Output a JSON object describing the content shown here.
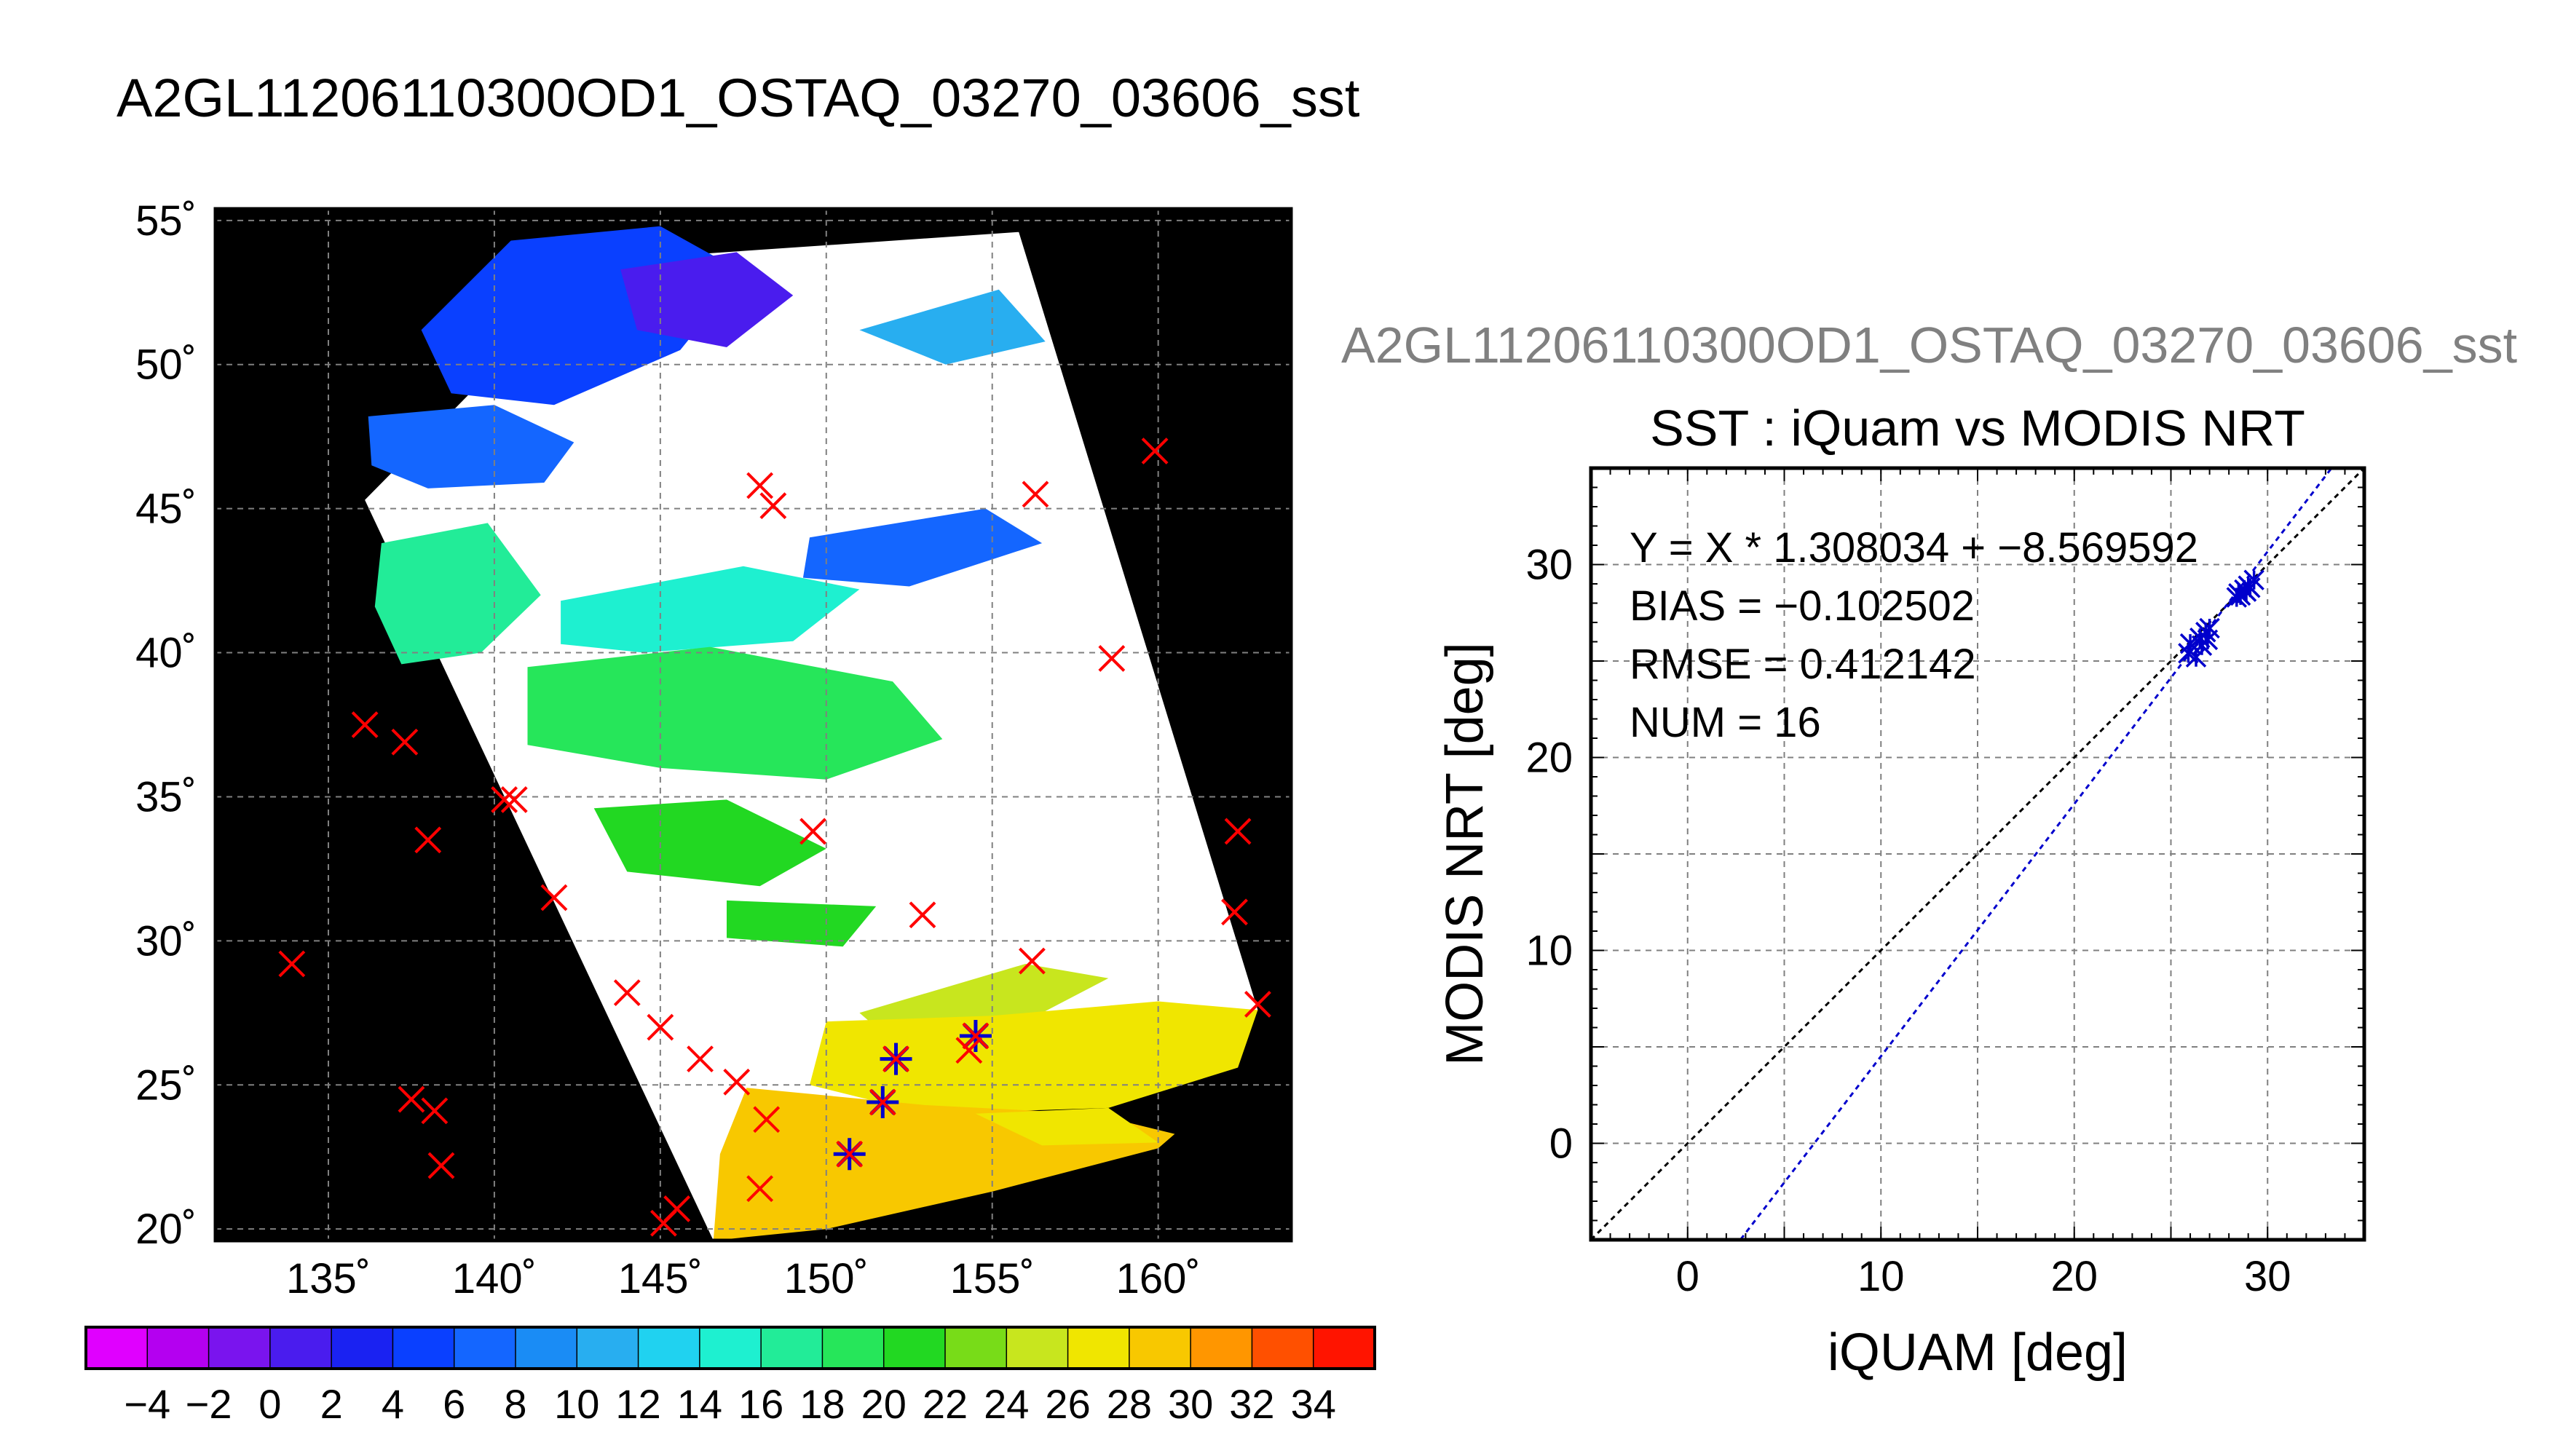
{
  "title": "A2GL11206110300OD1_OSTAQ_03270_03606_sst",
  "right_header": "A2GL11206110300OD1_OSTAQ_03270_03606_sst",
  "colors": {
    "land": "#000000",
    "cloud": "#ffffff",
    "match_marker": "#ff0000",
    "valid_marker": "#0000cc",
    "fit_line": "#0000cc",
    "one_to_one": "#000000"
  },
  "chart_data": [
    {
      "type": "heatmap",
      "name": "sst-map",
      "x_ticks": [
        "135˚",
        "140˚",
        "145˚",
        "150˚",
        "155˚",
        "160˚"
      ],
      "y_ticks": [
        "55˚",
        "50˚",
        "45˚",
        "40˚",
        "35˚",
        "30˚",
        "25˚",
        "20˚"
      ],
      "xlim": [
        131.6,
        164.0
      ],
      "ylim": [
        19.6,
        55.4
      ],
      "grid": true,
      "swath_corners": [
        [
          143.2,
          53.6
        ],
        [
          155.8,
          54.6
        ],
        [
          163.0,
          27.6
        ],
        [
          146.6,
          19.6
        ],
        [
          136.1,
          45.3
        ]
      ],
      "colorbar": {
        "labels": [
          "−4",
          "−2",
          "0",
          "2",
          "4",
          "6",
          "8",
          "10",
          "12",
          "14",
          "16",
          "18",
          "20",
          "22",
          "24",
          "26",
          "28",
          "30",
          "32",
          "34"
        ],
        "range": [
          -5,
          35
        ],
        "colors": [
          "#e000ff",
          "#b400f0",
          "#7a14ee",
          "#4a1cee",
          "#1a22f2",
          "#0a40ff",
          "#1466ff",
          "#1a8cf5",
          "#28aef0",
          "#20d2f0",
          "#1ef0d0",
          "#22ec98",
          "#26e65a",
          "#22d822",
          "#78dc18",
          "#c8e61e",
          "#f0e600",
          "#f8c800",
          "#ff9600",
          "#ff5000",
          "#ff1400"
        ]
      },
      "matchups": [
        {
          "lon": 133.9,
          "lat": 29.2
        },
        {
          "lon": 136.1,
          "lat": 37.5
        },
        {
          "lon": 137.3,
          "lat": 36.9
        },
        {
          "lon": 138.0,
          "lat": 33.5
        },
        {
          "lon": 137.5,
          "lat": 24.5
        },
        {
          "lon": 138.2,
          "lat": 24.1
        },
        {
          "lon": 138.4,
          "lat": 22.2
        },
        {
          "lon": 140.3,
          "lat": 34.9
        },
        {
          "lon": 140.6,
          "lat": 34.9
        },
        {
          "lon": 141.8,
          "lat": 31.5
        },
        {
          "lon": 144.0,
          "lat": 28.2
        },
        {
          "lon": 145.0,
          "lat": 27.0
        },
        {
          "lon": 145.5,
          "lat": 20.7
        },
        {
          "lon": 145.1,
          "lat": 20.2
        },
        {
          "lon": 146.2,
          "lat": 25.9
        },
        {
          "lon": 147.3,
          "lat": 25.1
        },
        {
          "lon": 148.0,
          "lat": 45.8
        },
        {
          "lon": 148.4,
          "lat": 45.1
        },
        {
          "lon": 148.2,
          "lat": 23.8
        },
        {
          "lon": 148.0,
          "lat": 21.4
        },
        {
          "lon": 149.6,
          "lat": 33.8
        },
        {
          "lon": 150.7,
          "lat": 22.6
        },
        {
          "lon": 151.7,
          "lat": 24.4
        },
        {
          "lon": 152.1,
          "lat": 25.9
        },
        {
          "lon": 152.9,
          "lat": 30.9
        },
        {
          "lon": 154.3,
          "lat": 26.2
        },
        {
          "lon": 154.5,
          "lat": 26.7
        },
        {
          "lon": 156.2,
          "lat": 29.3
        },
        {
          "lon": 156.3,
          "lat": 45.5
        },
        {
          "lon": 158.6,
          "lat": 39.8
        },
        {
          "lon": 159.9,
          "lat": 47.0
        },
        {
          "lon": 162.4,
          "lat": 33.8
        },
        {
          "lon": 162.3,
          "lat": 31.0
        },
        {
          "lon": 163.0,
          "lat": 27.8
        }
      ],
      "valid_points": [
        {
          "lon": 150.7,
          "lat": 22.6
        },
        {
          "lon": 151.7,
          "lat": 24.4
        },
        {
          "lon": 152.1,
          "lat": 25.9
        },
        {
          "lon": 154.5,
          "lat": 26.7
        }
      ]
    },
    {
      "type": "scatter",
      "name": "scatter-iquam-vs-modis",
      "title": "SST : iQuam vs MODIS NRT",
      "xlabel": "iQUAM [deg]",
      "ylabel": "MODIS NRT [deg]",
      "xlim": [
        -5,
        35
      ],
      "ylim": [
        -5,
        35
      ],
      "x_ticks": [
        0,
        10,
        20,
        30
      ],
      "y_ticks": [
        0,
        10,
        20,
        30
      ],
      "grid": true,
      "stats": [
        "Y = X * 1.308034 + −8.569592",
        "BIAS = −0.102502",
        "RMSE = 0.412142",
        "NUM = 16"
      ],
      "fit": {
        "slope": 1.308034,
        "intercept": -8.569592
      },
      "points": [
        {
          "x": 25.9,
          "y": 25.4
        },
        {
          "x": 26.0,
          "y": 25.9
        },
        {
          "x": 26.3,
          "y": 25.2
        },
        {
          "x": 26.5,
          "y": 26.2
        },
        {
          "x": 26.6,
          "y": 25.8
        },
        {
          "x": 26.8,
          "y": 26.5
        },
        {
          "x": 26.9,
          "y": 26.1
        },
        {
          "x": 27.0,
          "y": 26.7
        },
        {
          "x": 28.4,
          "y": 28.3
        },
        {
          "x": 28.5,
          "y": 28.5
        },
        {
          "x": 28.6,
          "y": 28.4
        },
        {
          "x": 28.8,
          "y": 28.7
        },
        {
          "x": 28.9,
          "y": 28.6
        },
        {
          "x": 29.0,
          "y": 28.9
        },
        {
          "x": 29.1,
          "y": 28.8
        },
        {
          "x": 29.3,
          "y": 29.2
        }
      ]
    }
  ]
}
